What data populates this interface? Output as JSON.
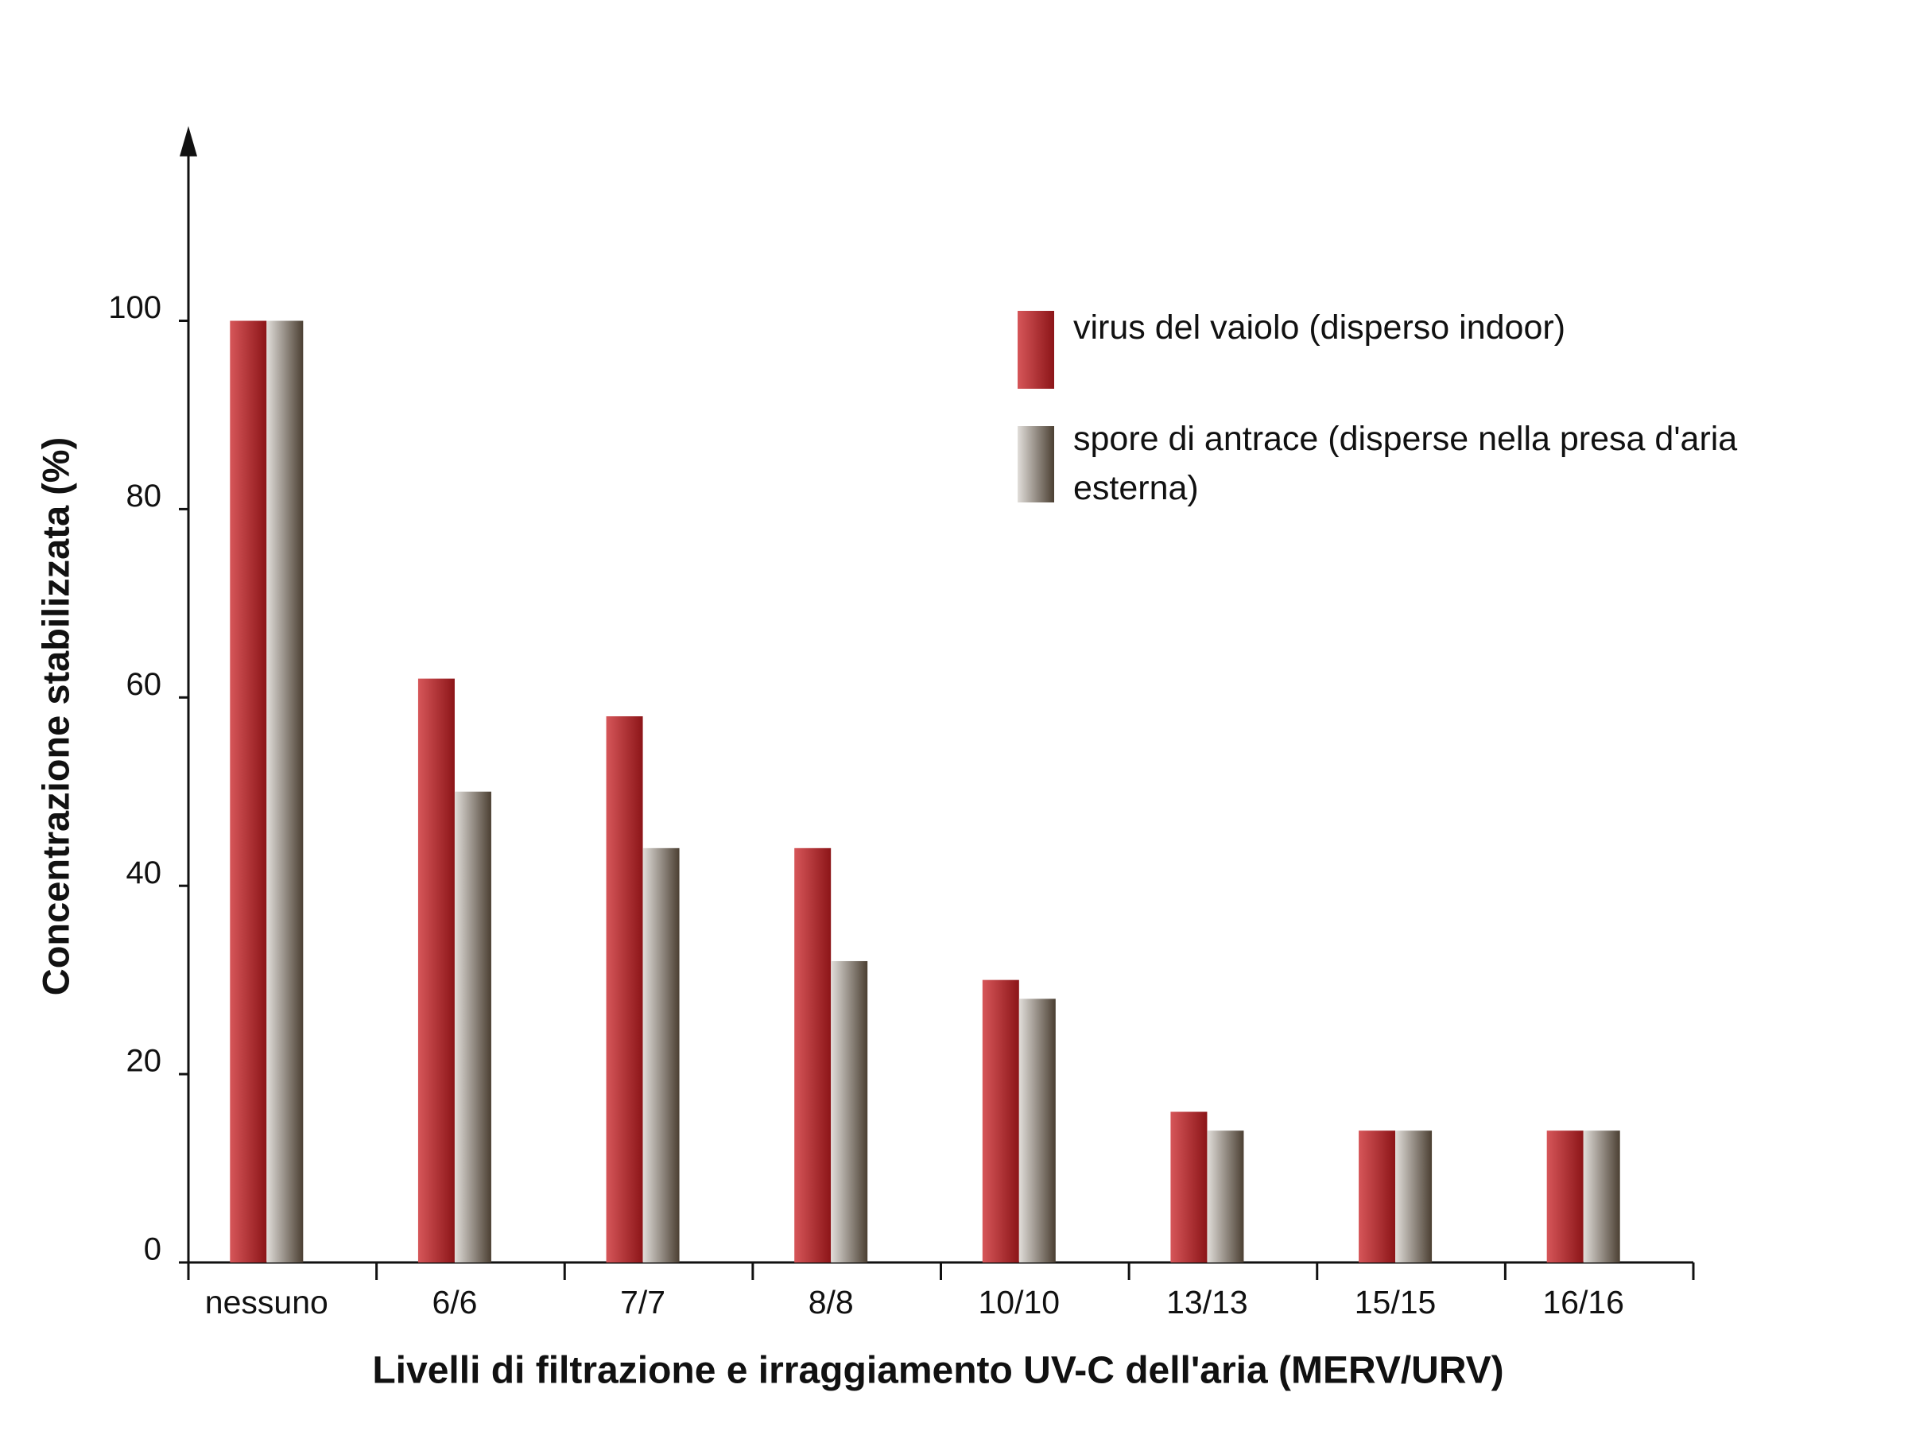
{
  "chart_data": {
    "type": "bar",
    "y_label": "Concentrazione stabilizzata (%)",
    "x_label": "Livelli di filtrazione e irraggiamento UV-C dell'aria (MERV/URV)",
    "categories": [
      "nessuno",
      "6/6",
      "7/7",
      "8/8",
      "10/10",
      "13/13",
      "15/15",
      "16/16"
    ],
    "series": [
      {
        "name": "virus del vaiolo (disperso indoor)",
        "color": "#c81e22",
        "values": [
          100,
          62,
          58,
          44,
          30,
          16,
          14,
          14
        ]
      },
      {
        "name": "spore di antrace (disperse nella presa d'aria esterna)",
        "color": "#6b5a48",
        "values": [
          100,
          50,
          44,
          32,
          28,
          14,
          14,
          14
        ]
      }
    ],
    "ylim": [
      0,
      120
    ],
    "yticks": [
      0,
      20,
      40,
      60,
      80,
      100
    ],
    "grid": false,
    "legend": "upper right"
  }
}
